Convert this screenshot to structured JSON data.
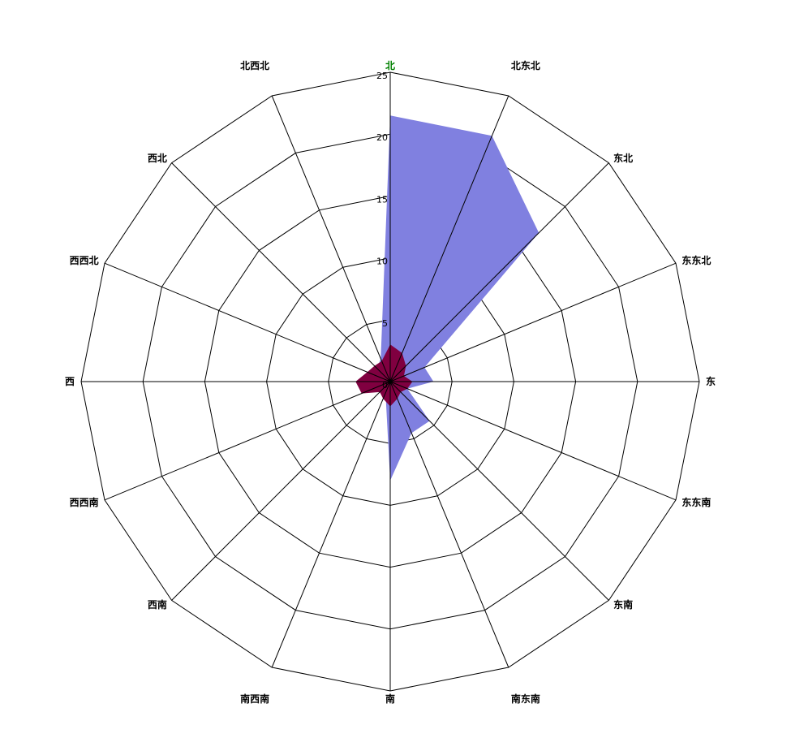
{
  "chart_data": {
    "type": "radar",
    "subtype": "polar-area-wind-rose",
    "directions": [
      "北",
      "北东北",
      "东北",
      "东东北",
      "东",
      "东东南",
      "东南",
      "南东南",
      "南",
      "南西南",
      "西南",
      "西西南",
      "西",
      "西西北",
      "西北",
      "北西北"
    ],
    "r_ticks": [
      "0",
      "5",
      "10",
      "15",
      "20",
      "25"
    ],
    "rlim": [
      0,
      25
    ],
    "grid": true,
    "highlight_direction_color": "#008000",
    "series": [
      {
        "color": "#8080e0",
        "values": [
          21.5,
          21.5,
          17,
          3,
          3.5,
          1.5,
          4.5,
          4.5,
          8,
          1,
          0.5,
          0.5,
          0.5,
          1.2,
          1.5,
          2
        ]
      },
      {
        "color": "#800040",
        "values": [
          3,
          2.5,
          1.8,
          1.2,
          1.8,
          1.5,
          1.2,
          1.5,
          2,
          1.5,
          1.2,
          2.5,
          2.8,
          2,
          1.8,
          1.8
        ]
      }
    ]
  }
}
